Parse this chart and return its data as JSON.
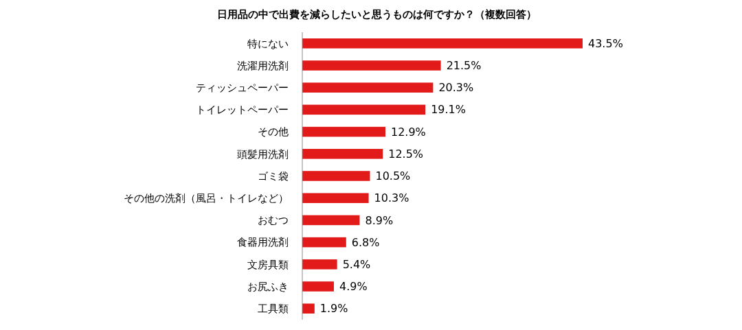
{
  "chart_data": {
    "type": "bar",
    "orientation": "horizontal",
    "title": "日用品の中で出費を減らしたいと思うものは何ですか？（複数回答）",
    "categories": [
      "特にない",
      "洗濯用洗剤",
      "ティッシュペーパー",
      "トイレットペーパー",
      "その他",
      "頭髪用洗剤",
      "ゴミ袋",
      "その他の洗剤（風呂・トイレなど）",
      "おむつ",
      "食器用洗剤",
      "文房具類",
      "お尻ふき",
      "工具類"
    ],
    "values": [
      43.5,
      21.5,
      20.3,
      19.1,
      12.9,
      12.5,
      10.5,
      10.3,
      8.9,
      6.8,
      5.4,
      4.9,
      1.9
    ],
    "value_labels": [
      "43.5%",
      "21.5%",
      "20.3%",
      "19.1%",
      "12.9%",
      "12.5%",
      "10.5%",
      "10.3%",
      "8.9%",
      "6.8%",
      "5.4%",
      "4.9%",
      "1.9%"
    ],
    "color": "#e31a1a"
  }
}
